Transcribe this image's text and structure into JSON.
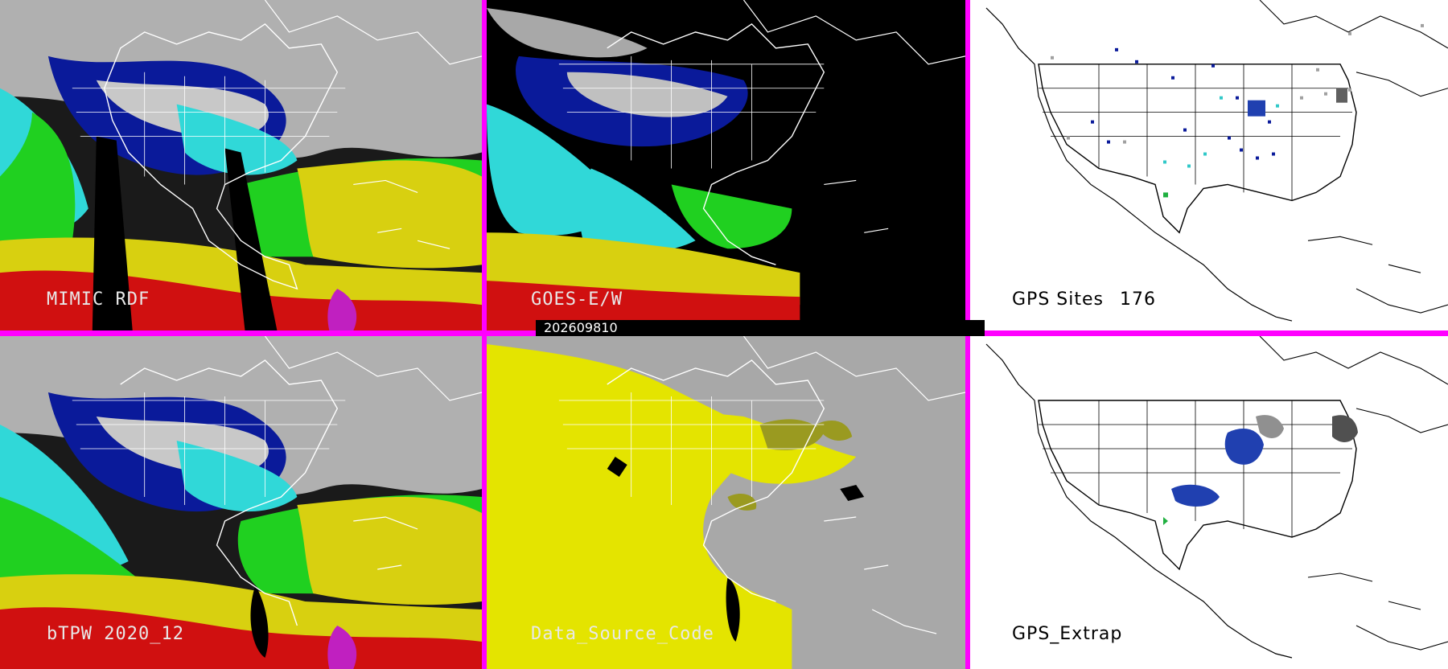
{
  "panels": [
    {
      "id": "mimic",
      "label": "MIMIC RDF"
    },
    {
      "id": "goes",
      "label": "GOES-E/W"
    },
    {
      "id": "gps_sites",
      "label": "GPS Sites",
      "count": "176"
    },
    {
      "id": "btpw",
      "label": "bTPW 2020_12"
    },
    {
      "id": "source",
      "label": "Data_Source_Code"
    },
    {
      "id": "gps_extrap",
      "label": "GPS_Extrap"
    }
  ],
  "timestamp": "202609810",
  "colors": {
    "divider": "#ff00ff",
    "tpw_grey": "#9a9a9a",
    "tpw_blue": "#0a1a9a",
    "tpw_cyan": "#30d8d8",
    "tpw_green": "#20d020",
    "tpw_yellow": "#d8d010",
    "tpw_red": "#d01010",
    "source_grey": "#a8a8a8",
    "source_yellow": "#e4e400",
    "source_olive": "#9a9a20"
  }
}
